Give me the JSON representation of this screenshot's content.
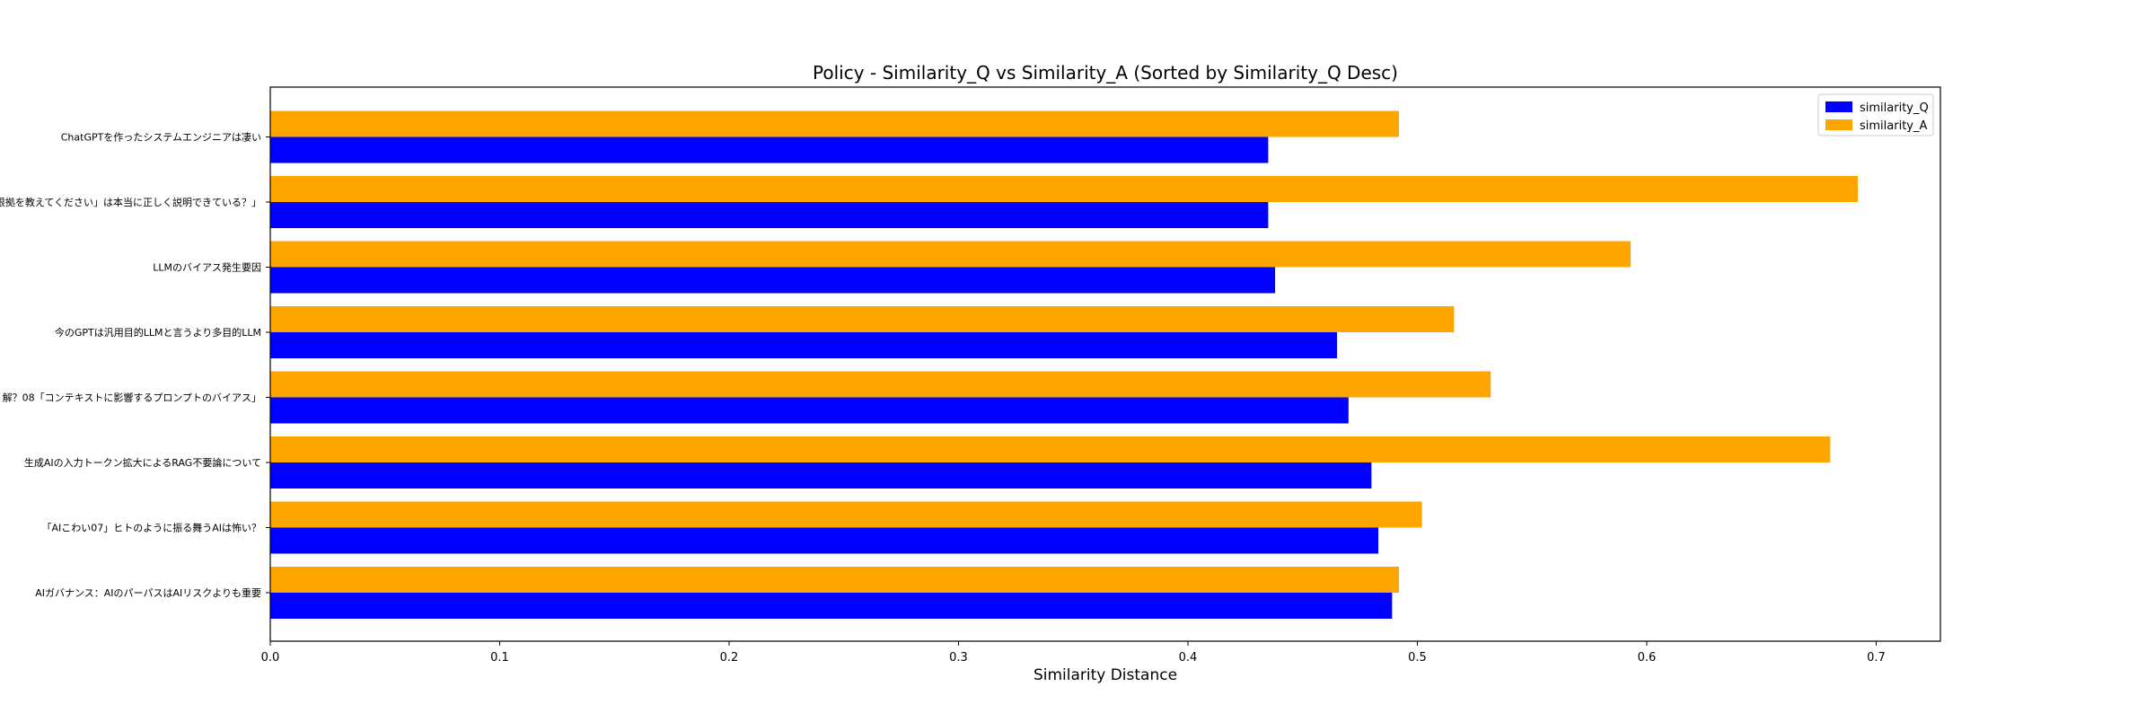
{
  "chart_data": {
    "type": "bar",
    "orientation": "horizontal",
    "title": "Policy - Similarity_Q vs Similarity_A (Sorted by Similarity_Q Desc)",
    "xlabel": "Similarity Distance",
    "ylabel": "",
    "xlim": [
      0.0,
      0.728
    ],
    "xticks": [
      "0.0",
      "0.1",
      "0.2",
      "0.3",
      "0.4",
      "0.5",
      "0.6",
      "0.7"
    ],
    "xtick_values": [
      0.0,
      0.1,
      0.2,
      0.3,
      0.4,
      0.5,
      0.6,
      0.7
    ],
    "grid": false,
    "legend_position": "top-right",
    "categories": [
      "ChatGPTを作ったシステムエンジニアは凄い",
      "「根拠を教えてください」は本当に正しく説明できている？」",
      "LLMのバイアス発生要因",
      "今のGPTは汎用目的LLMと言うより多目的LLM",
      "解？08「コンテキストに影響するプロンプトのバイアス」",
      "生成AIの入力トークン拡大によるRAG不要論について",
      "「AIこわい07」ヒトのように振る舞うAIは怖い？",
      "AIガバナンス：AIのパーパスはAIリスクよりも重要"
    ],
    "series": [
      {
        "name": "similarity_Q",
        "color": "#0000ff",
        "values": [
          0.435,
          0.435,
          0.438,
          0.465,
          0.47,
          0.48,
          0.483,
          0.489
        ]
      },
      {
        "name": "similarity_A",
        "color": "#ffa500",
        "values": [
          0.492,
          0.692,
          0.593,
          0.516,
          0.532,
          0.68,
          0.502,
          0.492
        ]
      }
    ]
  }
}
